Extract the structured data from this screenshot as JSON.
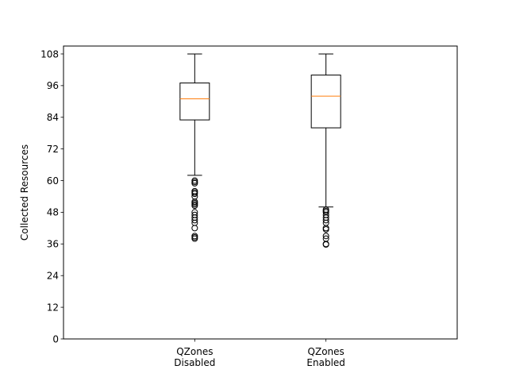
{
  "chart_data": {
    "type": "box",
    "title": "",
    "xlabel": "",
    "ylabel": "Collected Resources",
    "ylim": [
      0,
      111
    ],
    "yticks": [
      0,
      12,
      24,
      36,
      48,
      60,
      72,
      84,
      96,
      108
    ],
    "grid": false,
    "categories": [
      [
        "QZones",
        "Disabled"
      ],
      [
        "QZones",
        "Enabled"
      ]
    ],
    "boxes": [
      {
        "whisker_low": 62,
        "q1": 83,
        "median": 91,
        "q3": 97,
        "whisker_high": 108,
        "outliers": [
          60,
          59.5,
          59,
          56,
          55.5,
          55,
          54,
          52,
          51.5,
          51,
          50.5,
          48,
          47,
          46,
          45,
          44,
          42,
          39,
          38.5,
          38
        ]
      },
      {
        "whisker_low": 50,
        "q1": 80,
        "median": 92,
        "q3": 100,
        "whisker_high": 108,
        "outliers": [
          49,
          48.5,
          48,
          47,
          46,
          45,
          44,
          42,
          41.5,
          39,
          38,
          36,
          35.8
        ]
      }
    ],
    "colors": {
      "box": "#000000",
      "median": "#ff7f0e",
      "outlier": "#000000"
    }
  }
}
